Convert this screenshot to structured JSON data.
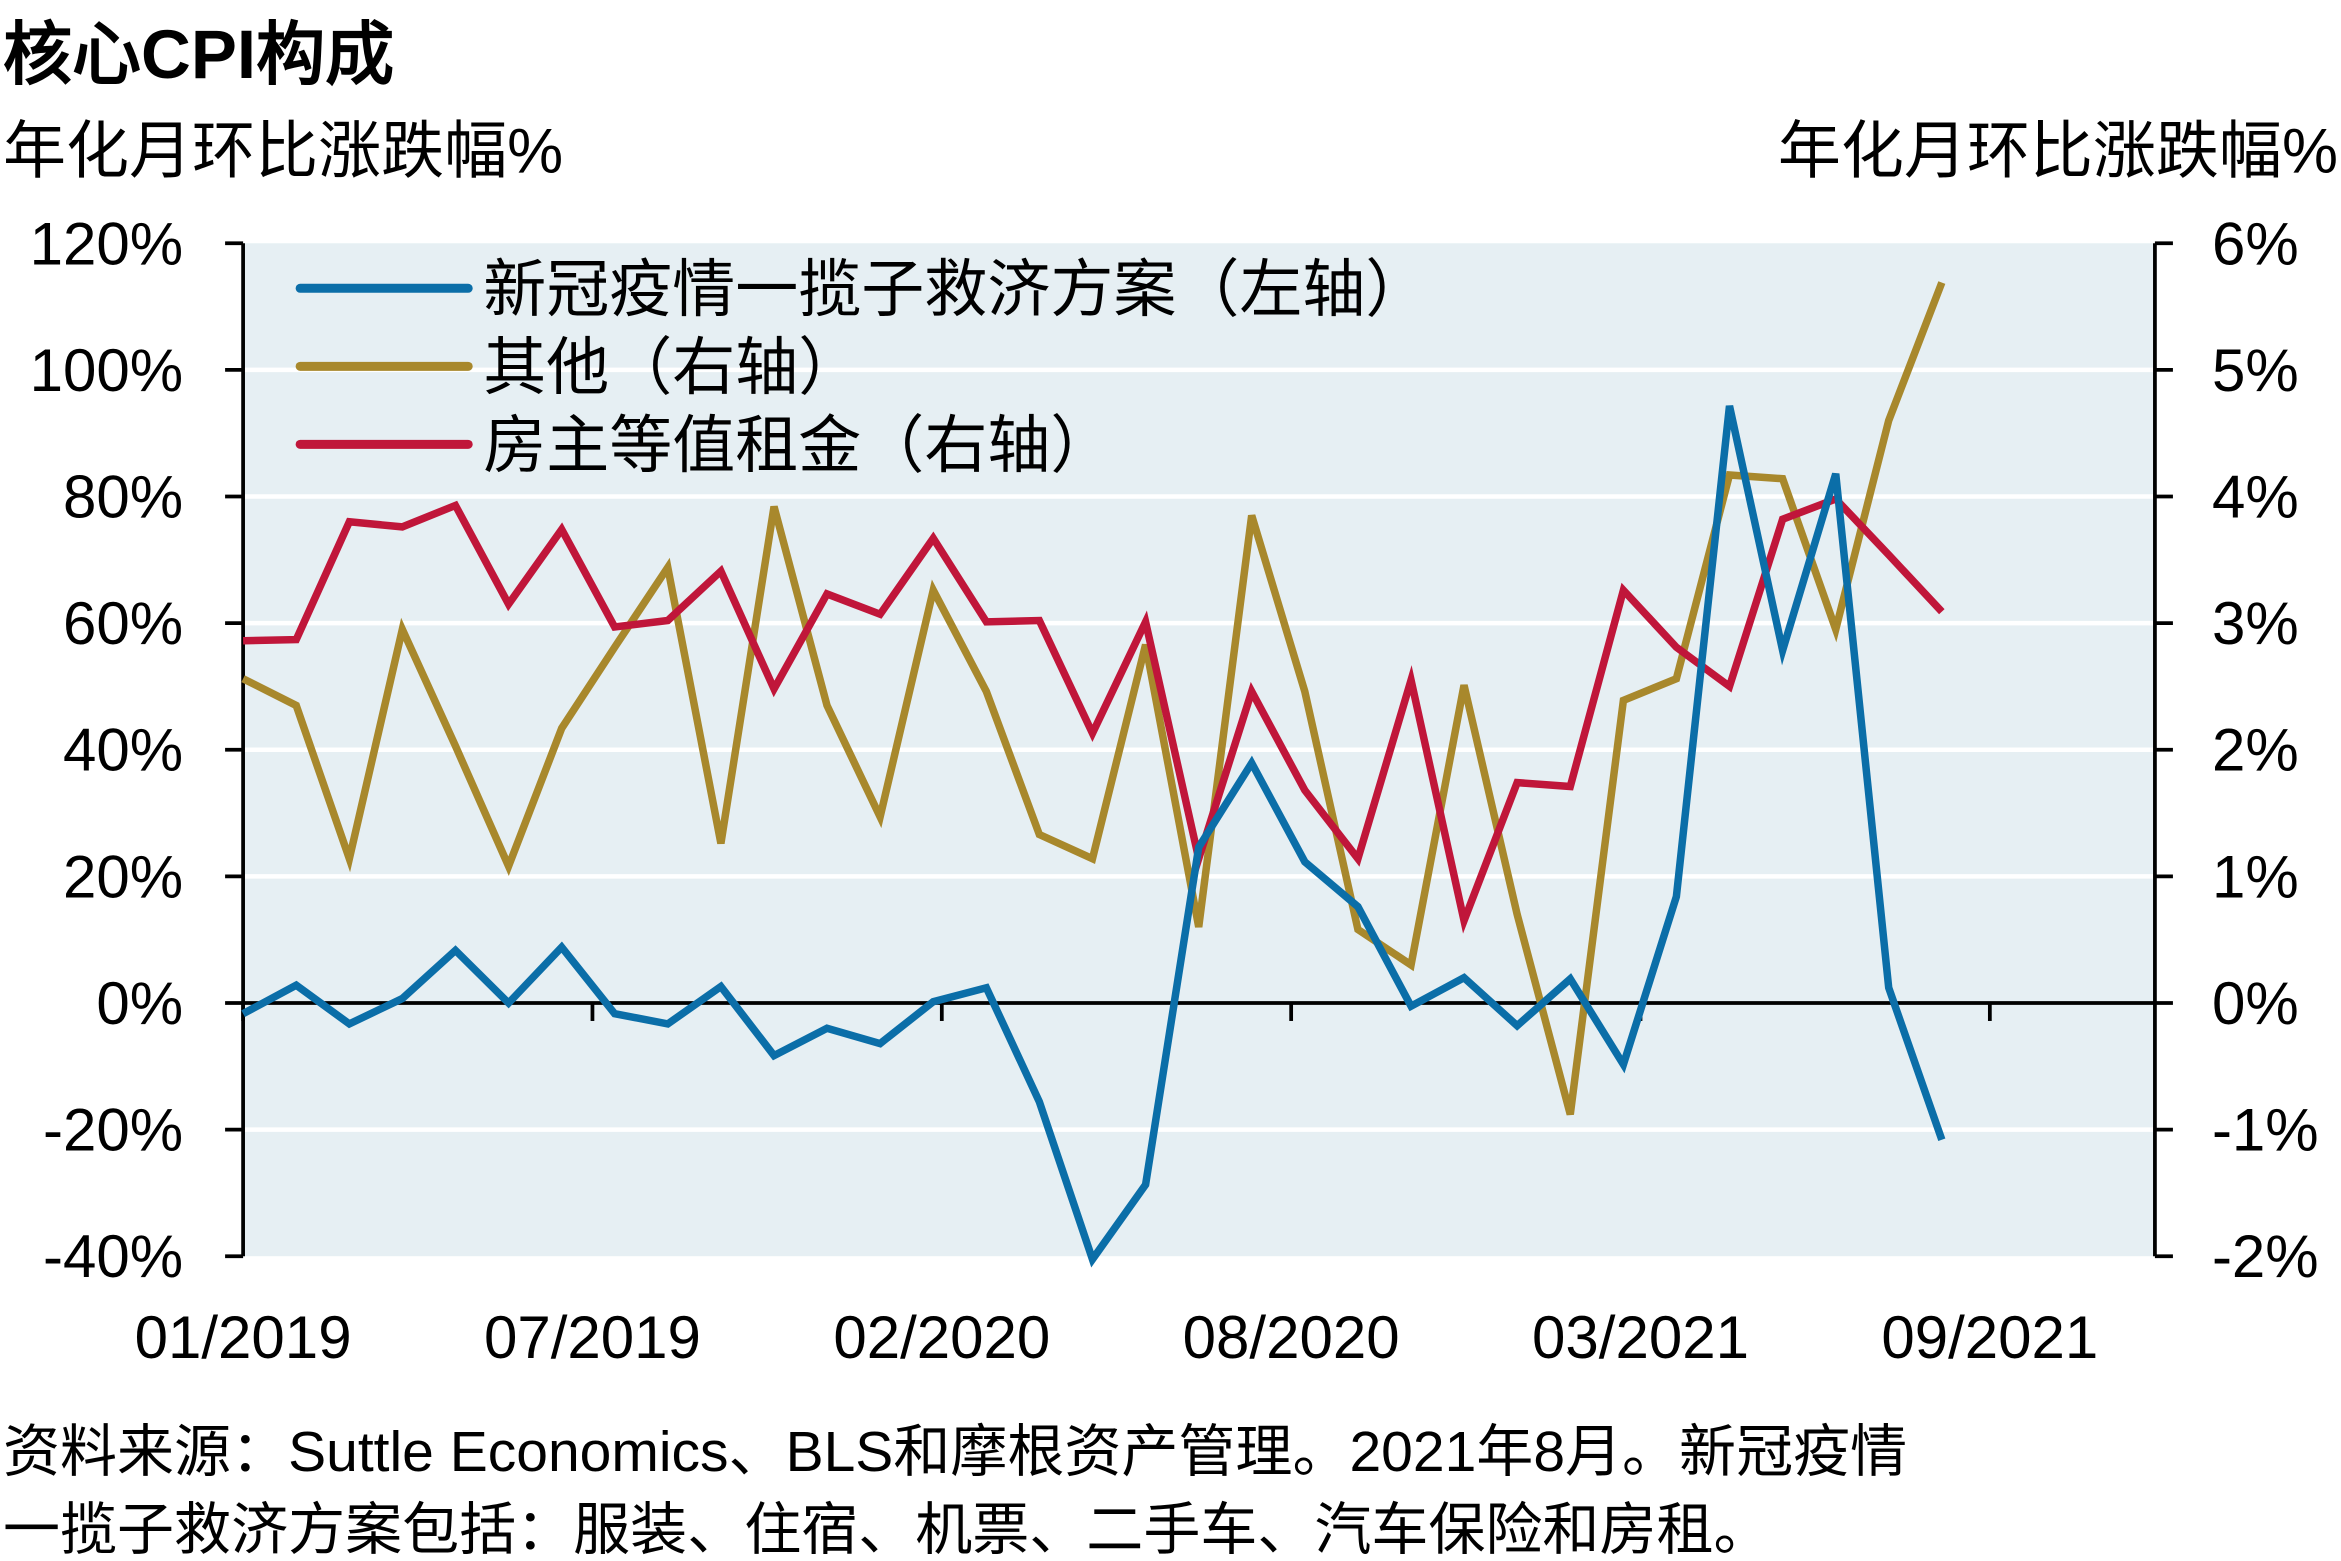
{
  "chart_data": {
    "type": "line",
    "title": "核心CPI构成",
    "ylabel_left": "年化月环比涨跌幅%",
    "ylabel_right": "年化月环比涨跌幅%",
    "x_tick_labels": [
      "01/2019",
      "07/2019",
      "02/2020",
      "08/2020",
      "03/2021",
      "09/2021"
    ],
    "x_start": "01/2019",
    "x_months": 33,
    "y_left": {
      "min": -40,
      "max": 120,
      "step": 20,
      "tick_labels": [
        "-40%",
        "-20%",
        "0%",
        "20%",
        "40%",
        "60%",
        "80%",
        "100%",
        "120%"
      ]
    },
    "y_right": {
      "min": -2,
      "max": 6,
      "step": 1,
      "tick_labels": [
        "-2%",
        "-1%",
        "0%",
        "1%",
        "2%",
        "3%",
        "4%",
        "5%",
        "6%"
      ]
    },
    "grid": true,
    "legend_placement": "top-left",
    "series": [
      {
        "name": "新冠疫情一揽子救济方案（左轴）",
        "axis": "left",
        "color": "#0b6ea8",
        "values": [
          -1.7,
          2.8,
          -3.3,
          0.7,
          8.3,
          0,
          8.8,
          -1.7,
          -3.3,
          2.6,
          -8.3,
          -4,
          -6.4,
          0.2,
          2.4,
          -15.6,
          -40.5,
          -28.7,
          24.6,
          37.9,
          22.3,
          15.2,
          -0.5,
          4,
          -3.6,
          3.8,
          -9.7,
          16.8,
          94.3,
          55.7,
          83.6,
          2.4,
          -21.6
        ]
      },
      {
        "name": "其他（右轴）",
        "axis": "right",
        "color": "#a8882c",
        "values": [
          2.56,
          2.35,
          1.14,
          2.95,
          2.03,
          1.08,
          2.17,
          2.81,
          3.44,
          1.26,
          3.92,
          2.35,
          1.47,
          3.26,
          2.46,
          1.33,
          1.14,
          2.83,
          0.6,
          3.85,
          2.46,
          0.58,
          0.3,
          2.51,
          0.7,
          -0.88,
          2.39,
          2.56,
          4.17,
          4.14,
          2.95,
          4.6,
          5.69
        ]
      },
      {
        "name": "房主等值租金（右轴）",
        "axis": "right",
        "color": "#c0163a",
        "values": [
          2.86,
          2.87,
          3.8,
          3.76,
          3.93,
          3.15,
          3.74,
          2.97,
          3.02,
          3.41,
          2.48,
          3.23,
          3.07,
          3.67,
          3.01,
          3.02,
          2.13,
          3.01,
          1.14,
          2.46,
          1.68,
          1.14,
          2.55,
          0.65,
          1.74,
          1.71,
          3.26,
          2.81,
          2.5,
          3.82,
          3.98,
          3.54,
          3.09
        ]
      }
    ],
    "footnote_lines": [
      "资料来源：Suttle Economics、BLS和摩根资产管理。2021年8月。新冠疫情",
      "一揽子救济方案包括：服装、住宿、机票、二手车、汽车保险和房租。"
    ]
  }
}
